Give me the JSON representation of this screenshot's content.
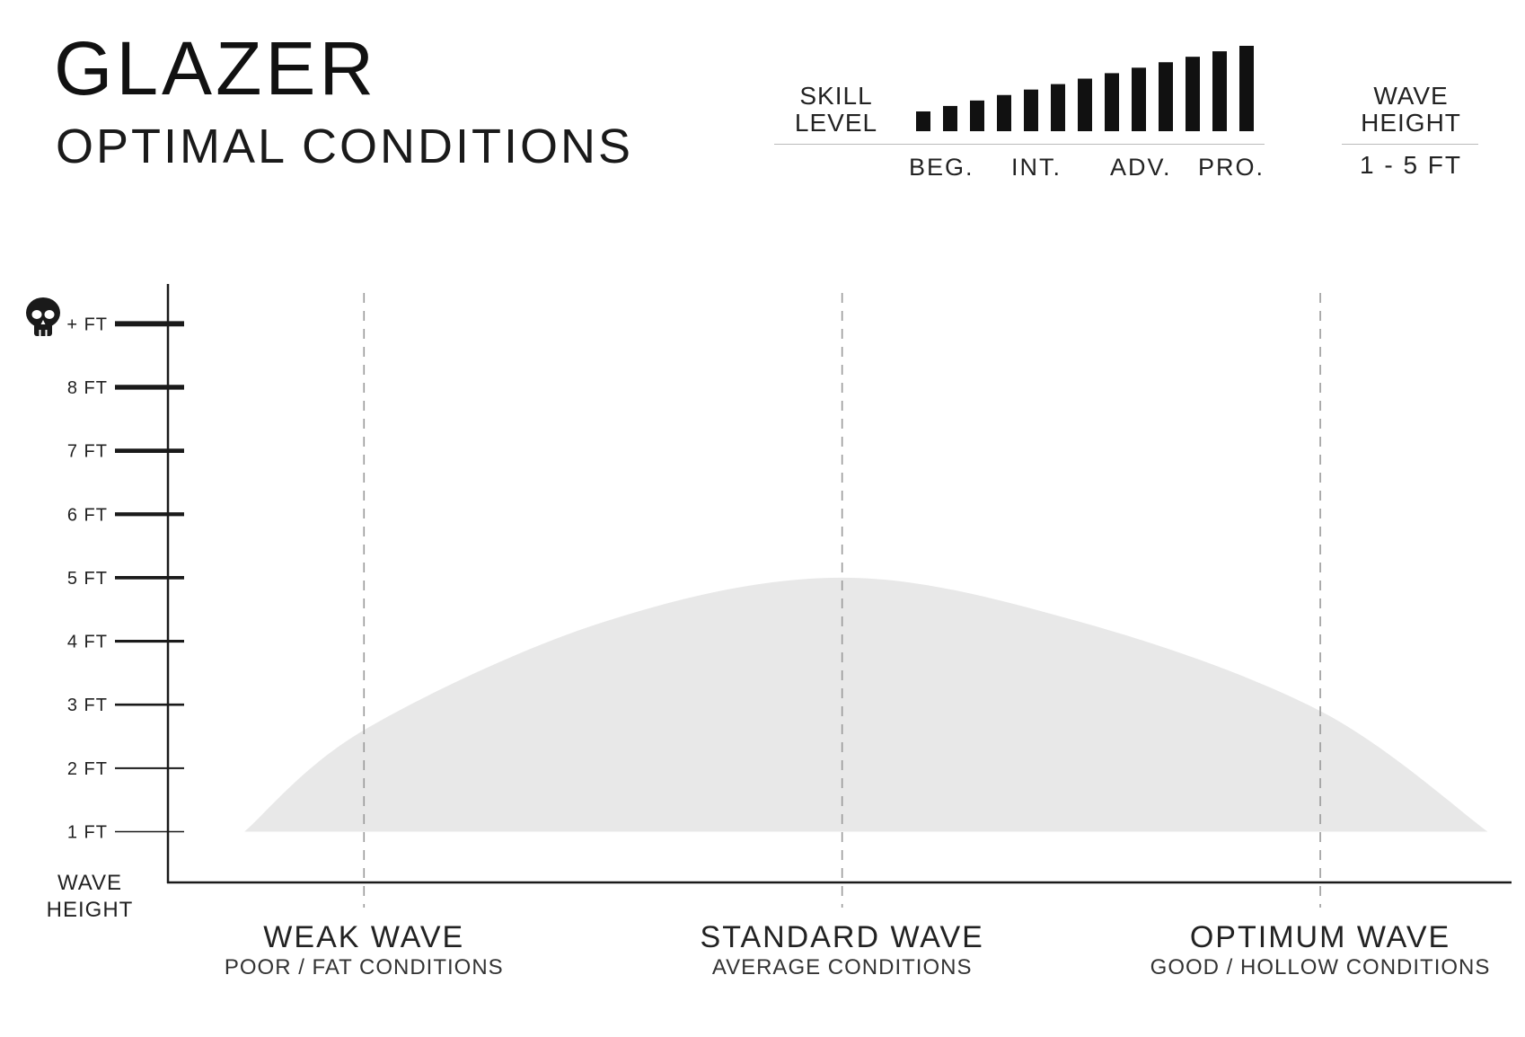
{
  "header": {
    "title": "GLAZER",
    "subtitle": "OPTIMAL CONDITIONS"
  },
  "skill_level": {
    "label_line1": "SKILL",
    "label_line2": "LEVEL",
    "ticks": [
      "BEG.",
      "INT.",
      "ADV.",
      "PRO."
    ],
    "bar_count": 13,
    "highlight": "all"
  },
  "wave_height_box": {
    "label_line1": "WAVE",
    "label_line2": "HEIGHT",
    "range": "1 - 5 FT"
  },
  "chart_data": {
    "type": "area",
    "title": "",
    "ylabel_line1": "WAVE",
    "ylabel_line2": "HEIGHT",
    "y_ticks": [
      {
        "value": 1,
        "label": "1 FT"
      },
      {
        "value": 2,
        "label": "2 FT"
      },
      {
        "value": 3,
        "label": "3 FT"
      },
      {
        "value": 4,
        "label": "4 FT"
      },
      {
        "value": 5,
        "label": "5 FT"
      },
      {
        "value": 6,
        "label": "6 FT"
      },
      {
        "value": 7,
        "label": "7 FT"
      },
      {
        "value": 8,
        "label": "8 FT"
      },
      {
        "value": 9,
        "label": "+ FT"
      }
    ],
    "ylim": [
      0.2,
      9.5
    ],
    "categories": [
      {
        "name": "WEAK WAVE",
        "sub": "POOR / FAT CONDITIONS"
      },
      {
        "name": "STANDARD WAVE",
        "sub": "AVERAGE CONDITIONS"
      },
      {
        "name": "OPTIMUM WAVE",
        "sub": "GOOD / HOLLOW CONDITIONS"
      }
    ],
    "category_positions": [
      0.5,
      1.5,
      2.5
    ],
    "xlim": [
      0.09,
      2.9
    ],
    "series": [
      {
        "x": [
          0.25,
          0.5,
          1.0,
          1.5,
          2.0,
          2.5,
          2.85
        ],
        "y": [
          1.0,
          2.6,
          4.3,
          5.0,
          4.3,
          2.9,
          1.0
        ]
      }
    ],
    "fill_color": "#e8e8e8",
    "axis_color": "#1a1a1a",
    "guide_color": "#999999",
    "grid": false
  }
}
